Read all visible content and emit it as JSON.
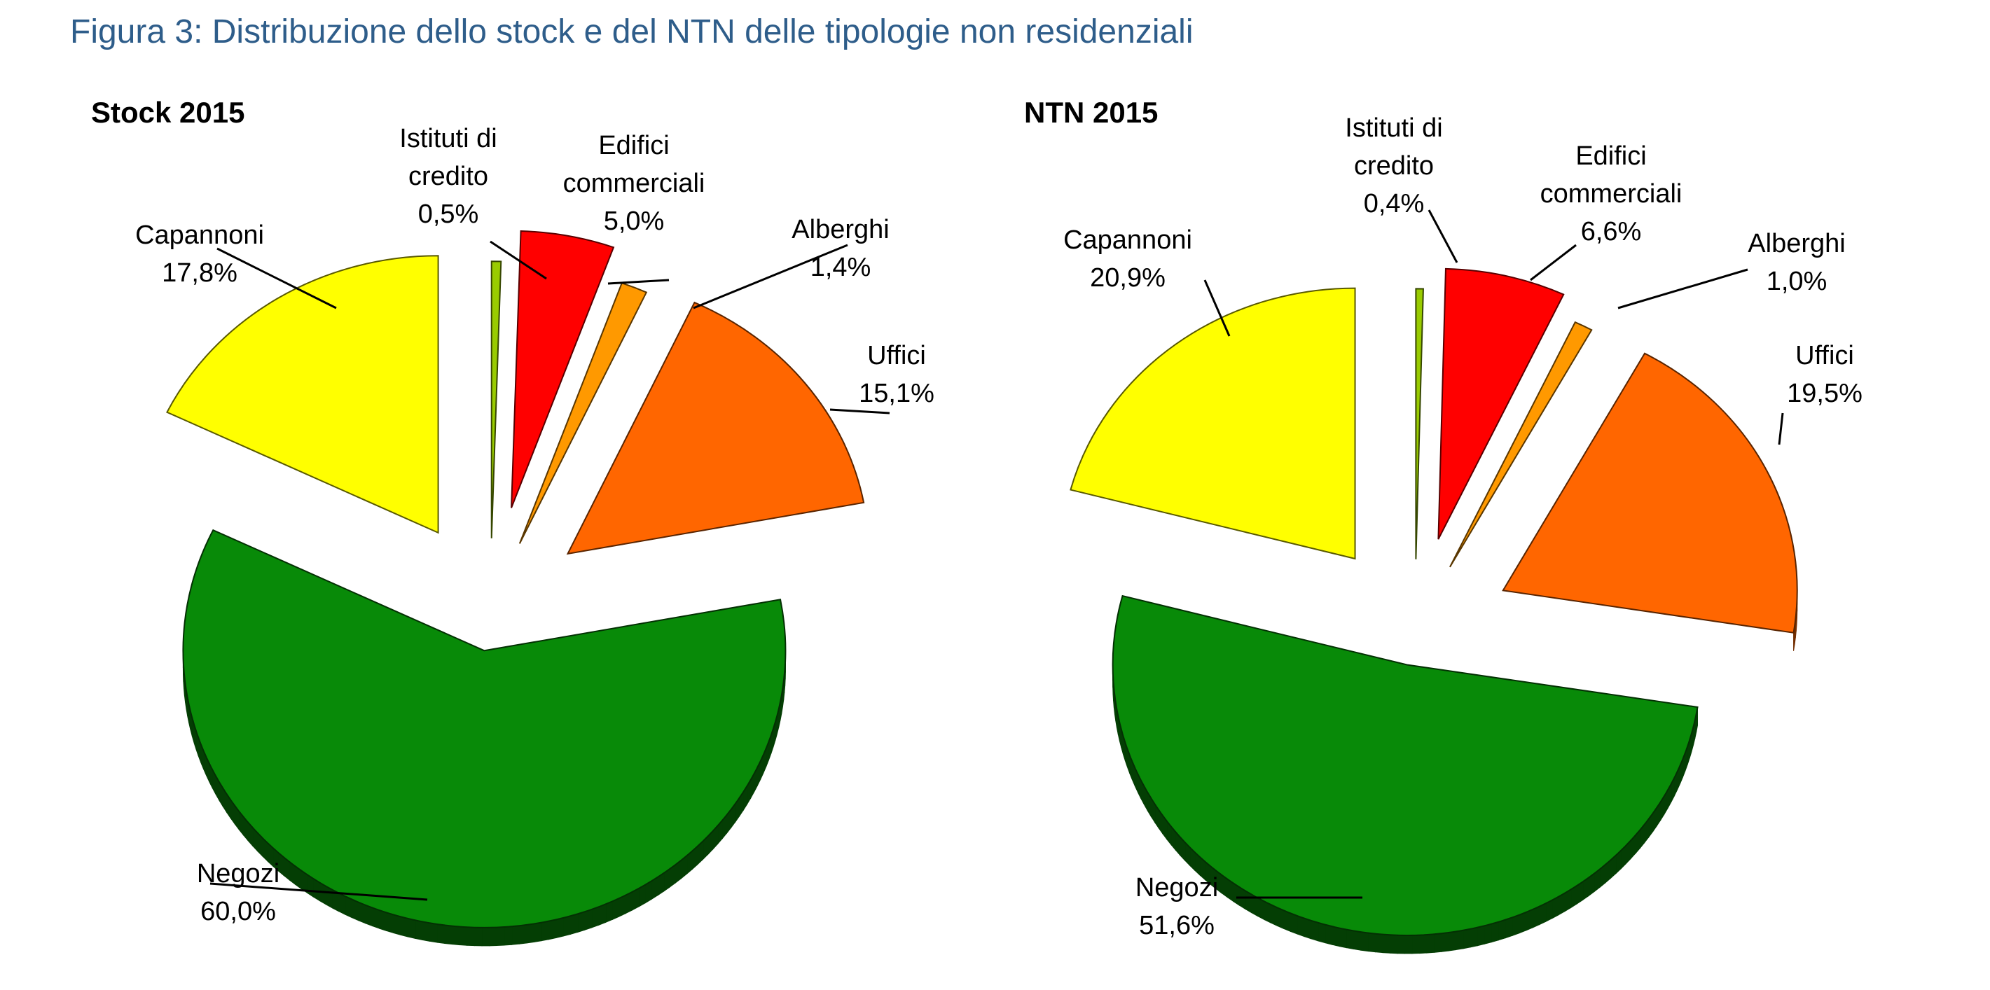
{
  "figure_title": "Figura 3: Distribuzione dello stock e del NTN delle tipologie non residenziali",
  "chart_data": [
    {
      "type": "pie",
      "title": "Stock 2015",
      "slices": [
        {
          "name": "Istituti di credito",
          "label_lines": [
            "Istituti di",
            "credito",
            "0,5%"
          ],
          "value": 0.5,
          "color": "#99cc00"
        },
        {
          "name": "Edifici commerciali",
          "label_lines": [
            "Edifici",
            "commerciali",
            "5,0%"
          ],
          "value": 5.0,
          "color": "#ff0000"
        },
        {
          "name": "Alberghi",
          "label_lines": [
            "Alberghi",
            "1,4%"
          ],
          "value": 1.4,
          "color": "#ff9900"
        },
        {
          "name": "Uffici",
          "label_lines": [
            "Uffici",
            "15,1%"
          ],
          "value": 15.1,
          "color": "#ff6600"
        },
        {
          "name": "Negozi",
          "label_lines": [
            "Negozi",
            "60,0%"
          ],
          "value": 60.0,
          "color": "#088a08"
        },
        {
          "name": "Capannoni",
          "label_lines": [
            "Capannoni",
            "17,8%"
          ],
          "value": 17.8,
          "color": "#ffff00"
        }
      ]
    },
    {
      "type": "pie",
      "title": "NTN 2015",
      "slices": [
        {
          "name": "Istituti di credito",
          "label_lines": [
            "Istituti di",
            "credito",
            "0,4%"
          ],
          "value": 0.4,
          "color": "#99cc00"
        },
        {
          "name": "Edifici commerciali",
          "label_lines": [
            "Edifici",
            "commerciali",
            "6,6%"
          ],
          "value": 6.6,
          "color": "#ff0000"
        },
        {
          "name": "Alberghi",
          "label_lines": [
            "Alberghi",
            "1,0%"
          ],
          "value": 1.0,
          "color": "#ff9900"
        },
        {
          "name": "Uffici",
          "label_lines": [
            "Uffici",
            "19,5%"
          ],
          "value": 19.5,
          "color": "#ff6600"
        },
        {
          "name": "Negozi",
          "label_lines": [
            "Negozi",
            "51,6%"
          ],
          "value": 51.6,
          "color": "#088a08"
        },
        {
          "name": "Capannoni",
          "label_lines": [
            "Capannoni",
            "20,9%"
          ],
          "value": 20.9,
          "color": "#ffff00"
        }
      ]
    }
  ]
}
